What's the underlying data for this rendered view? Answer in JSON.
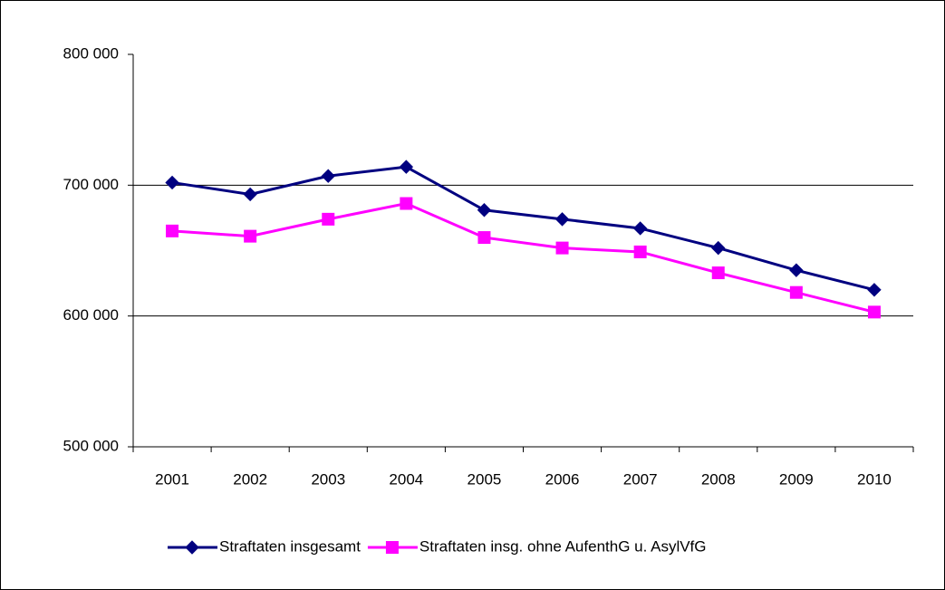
{
  "chart_data": {
    "type": "line",
    "categories": [
      "2001",
      "2002",
      "2003",
      "2004",
      "2005",
      "2006",
      "2007",
      "2008",
      "2009",
      "2010"
    ],
    "series": [
      {
        "name": "Straftaten insgesamt",
        "color": "#000080",
        "marker": "diamond",
        "values": [
          702000,
          693000,
          707000,
          714000,
          681000,
          674000,
          667000,
          652000,
          635000,
          620000
        ]
      },
      {
        "name": "Straftaten insg. ohne AufenthG u. AsylVfG",
        "color": "#ff00ff",
        "marker": "square",
        "values": [
          665000,
          661000,
          674000,
          686000,
          660000,
          652000,
          649000,
          633000,
          618000,
          603000
        ]
      }
    ],
    "ylim": [
      500000,
      800000
    ],
    "yticks": [
      {
        "value": 500000,
        "label": "500 000"
      },
      {
        "value": 600000,
        "label": "600 000"
      },
      {
        "value": 700000,
        "label": "700 000"
      },
      {
        "value": 800000,
        "label": "800 000"
      }
    ],
    "grid": true,
    "legend": "bottom"
  }
}
